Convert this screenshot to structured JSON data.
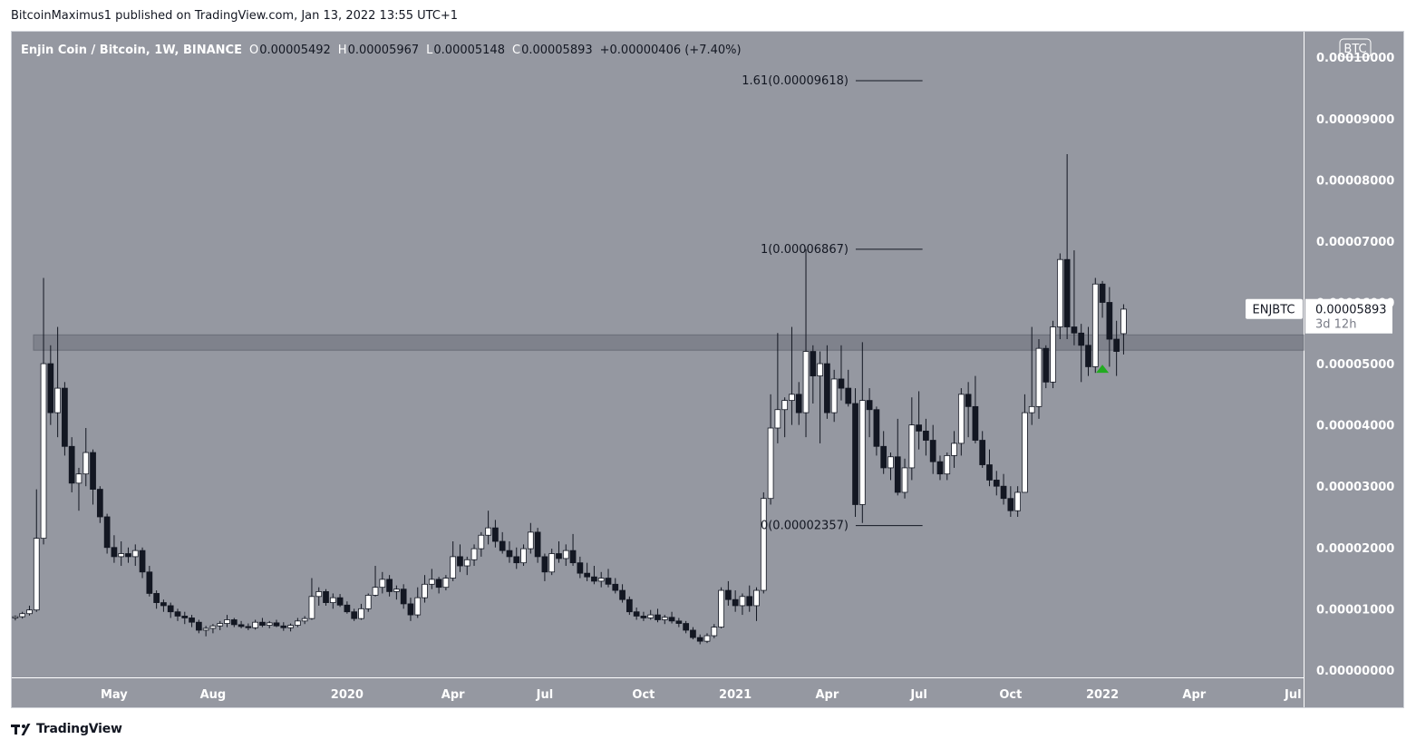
{
  "header": {
    "text": "BitcoinMaximus1 published on TradingView.com, Jan 13, 2022 13:55 UTC+1"
  },
  "footer": {
    "brand": "TradingView"
  },
  "colors": {
    "plot_background": "#9598a1",
    "candle_up": "#ffffff",
    "candle_down": "#131722",
    "axis_text": "#ffffff",
    "support_band": "#787b86",
    "marker": "#22ab20"
  },
  "chart_data": {
    "type": "candlestick",
    "title": "Enjin Coin / Bitcoin, 1W, BINANCE",
    "ohlc_legend": {
      "o_label": "O",
      "o_value": "0.00005492",
      "h_label": "H",
      "h_value": "0.00005967",
      "l_label": "L",
      "l_value": "0.00005148",
      "c_label": "C",
      "c_value": "0.00005893",
      "change": "+0.00000406 (+7.40%)"
    },
    "currency_badge": "BTC",
    "y_ticks": [
      "0.00000000",
      "0.00001000",
      "0.00002000",
      "0.00003000",
      "0.00004000",
      "0.00005000",
      "0.00006000",
      "0.00007000",
      "0.00008000",
      "0.00009000",
      "0.00010000"
    ],
    "y_tick_values": [
      0,
      1e-05,
      2e-05,
      3e-05,
      4e-05,
      5e-05,
      6e-05,
      7e-05,
      8e-05,
      9e-05,
      0.0001
    ],
    "y_range": [
      -1.2e-06,
      0.00010418
    ],
    "x_ticks": [
      {
        "label": "May",
        "week": 14
      },
      {
        "label": "Aug",
        "week": 28
      },
      {
        "label": "2020",
        "week": 47
      },
      {
        "label": "Apr",
        "week": 62
      },
      {
        "label": "Jul",
        "week": 75
      },
      {
        "label": "Oct",
        "week": 89
      },
      {
        "label": "2021",
        "week": 102
      },
      {
        "label": "Apr",
        "week": 115
      },
      {
        "label": "Jul",
        "week": 128
      },
      {
        "label": "Oct",
        "week": 141
      },
      {
        "label": "2022",
        "week": 154
      },
      {
        "label": "Apr",
        "week": 167
      },
      {
        "label": "Jul",
        "week": 181
      }
    ],
    "x_range_weeks": [
      -0.5,
      182.5
    ],
    "bold_x_ticks": [
      "2020",
      "2021",
      "2022"
    ],
    "symbol_label": "ENJBTC",
    "last_price": "0.00005893",
    "countdown": "3d 12h",
    "last_price_value": 5.893e-05,
    "support_zone": [
      5.22e-05,
      5.47e-05
    ],
    "fib_levels": [
      {
        "label": "1.61(0.00009618)",
        "value": 9.618e-05
      },
      {
        "label": "1(0.00006867)",
        "value": 6.867e-05
      },
      {
        "label": "0(0.00002357)",
        "value": 2.357e-05
      }
    ],
    "fib_line_week_range": [
      117,
      128
    ],
    "marker": {
      "shape": "up-triangle",
      "week": 154,
      "value": 4.91e-05
    },
    "candles": [
      [
        8.5e-06,
        8.9e-06,
        8.1e-06,
        8.7e-06
      ],
      [
        8.7e-06,
        9.5e-06,
        8.4e-06,
        9.2e-06
      ],
      [
        9.2e-06,
        1.05e-05,
        8.9e-06,
        9.8e-06
      ],
      [
        9.8e-06,
        2.95e-05,
        9.5e-06,
        2.15e-05
      ],
      [
        2.15e-05,
        6.4e-05,
        2.05e-05,
        5e-05
      ],
      [
        5e-05,
        5.3e-05,
        4e-05,
        4.2e-05
      ],
      [
        4.2e-05,
        5.6e-05,
        3.8e-05,
        4.6e-05
      ],
      [
        4.6e-05,
        4.7e-05,
        3.5e-05,
        3.65e-05
      ],
      [
        3.65e-05,
        3.8e-05,
        2.9e-05,
        3.05e-05
      ],
      [
        3.05e-05,
        3.3e-05,
        2.6e-05,
        3.2e-05
      ],
      [
        3.2e-05,
        3.95e-05,
        3e-05,
        3.55e-05
      ],
      [
        3.55e-05,
        3.6e-05,
        2.7e-05,
        2.95e-05
      ],
      [
        2.95e-05,
        3e-05,
        2.4e-05,
        2.5e-05
      ],
      [
        2.5e-05,
        2.55e-05,
        1.9e-05,
        2e-05
      ],
      [
        2e-05,
        2.2e-05,
        1.75e-05,
        1.85e-05
      ],
      [
        1.85e-05,
        2.1e-05,
        1.7e-05,
        1.9e-05
      ],
      [
        1.9e-05,
        2e-05,
        1.75e-05,
        1.85e-05
      ],
      [
        1.85e-05,
        2.05e-05,
        1.7e-05,
        1.95e-05
      ],
      [
        1.95e-05,
        2e-05,
        1.5e-05,
        1.6e-05
      ],
      [
        1.6e-05,
        1.7e-05,
        1.2e-05,
        1.25e-05
      ],
      [
        1.25e-05,
        1.3e-05,
        1e-05,
        1.1e-05
      ],
      [
        1.1e-05,
        1.15e-05,
        9.5e-06,
        1.05e-05
      ],
      [
        1.05e-05,
        1.1e-05,
        8.5e-06,
        9.5e-06
      ],
      [
        9.5e-06,
        1e-05,
        8e-06,
        8.8e-06
      ],
      [
        8.8e-06,
        9.5e-06,
        7.5e-06,
        8.5e-06
      ],
      [
        8.5e-06,
        9e-06,
        7e-06,
        7.8e-06
      ],
      [
        7.8e-06,
        8.2e-06,
        6e-06,
        6.5e-06
      ],
      [
        6.5e-06,
        7.2e-06,
        5.5e-06,
        6.8e-06
      ],
      [
        6.8e-06,
        7.5e-06,
        6e-06,
        7.2e-06
      ],
      [
        7.2e-06,
        8e-06,
        6.5e-06,
        7.6e-06
      ],
      [
        7.6e-06,
        9e-06,
        7e-06,
        8.2e-06
      ],
      [
        8.2e-06,
        8.5e-06,
        7e-06,
        7.4e-06
      ],
      [
        7.4e-06,
        8e-06,
        6.8e-06,
        7.1e-06
      ],
      [
        7.1e-06,
        7.6e-06,
        6.5e-06,
        6.9e-06
      ],
      [
        6.9e-06,
        8.2e-06,
        6.6e-06,
        7.8e-06
      ],
      [
        7.8e-06,
        8.5e-06,
        7e-06,
        7.3e-06
      ],
      [
        7.3e-06,
        8e-06,
        6.8e-06,
        7.7e-06
      ],
      [
        7.7e-06,
        8.2e-06,
        7e-06,
        7.2e-06
      ],
      [
        7.2e-06,
        7.8e-06,
        6.4e-06,
        6.9e-06
      ],
      [
        6.9e-06,
        7.6e-06,
        6.3e-06,
        7.3e-06
      ],
      [
        7.3e-06,
        8.5e-06,
        7e-06,
        8e-06
      ],
      [
        8e-06,
        8.8e-06,
        7.5e-06,
        8.4e-06
      ],
      [
        8.4e-06,
        1.5e-05,
        8.2e-06,
        1.2e-05
      ],
      [
        1.2e-05,
        1.35e-05,
        1.05e-05,
        1.28e-05
      ],
      [
        1.28e-05,
        1.32e-05,
        1.05e-05,
        1.1e-05
      ],
      [
        1.1e-05,
        1.25e-05,
        1e-05,
        1.18e-05
      ],
      [
        1.18e-05,
        1.24e-05,
        1.03e-05,
        1.06e-05
      ],
      [
        1.06e-05,
        1.12e-05,
        9.2e-06,
        9.5e-06
      ],
      [
        9.5e-06,
        1e-05,
        8e-06,
        8.4e-06
      ],
      [
        8.4e-06,
        1.08e-05,
        8.2e-06,
        1e-05
      ],
      [
        1e-05,
        1.25e-05,
        9.5e-06,
        1.22e-05
      ],
      [
        1.22e-05,
        1.7e-05,
        1.2e-05,
        1.35e-05
      ],
      [
        1.35e-05,
        1.6e-05,
        1.25e-05,
        1.48e-05
      ],
      [
        1.48e-05,
        1.55e-05,
        1.2e-05,
        1.28e-05
      ],
      [
        1.28e-05,
        1.38e-05,
        1.15e-05,
        1.32e-05
      ],
      [
        1.32e-05,
        1.4e-05,
        1e-05,
        1.08e-05
      ],
      [
        1.08e-05,
        1.18e-05,
        8e-06,
        9e-06
      ],
      [
        9e-06,
        1.35e-05,
        8.5e-06,
        1.18e-05
      ],
      [
        1.18e-05,
        1.55e-05,
        1.1e-05,
        1.4e-05
      ],
      [
        1.4e-05,
        1.65e-05,
        1.32e-05,
        1.48e-05
      ],
      [
        1.48e-05,
        1.52e-05,
        1.25e-05,
        1.35e-05
      ],
      [
        1.35e-05,
        1.55e-05,
        1.3e-05,
        1.5e-05
      ],
      [
        1.5e-05,
        2.1e-05,
        1.45e-05,
        1.85e-05
      ],
      [
        1.85e-05,
        2.05e-05,
        1.6e-05,
        1.7e-05
      ],
      [
        1.7e-05,
        1.85e-05,
        1.55e-05,
        1.8e-05
      ],
      [
        1.8e-05,
        2.05e-05,
        1.7e-05,
        1.98e-05
      ],
      [
        1.98e-05,
        2.25e-05,
        1.85e-05,
        2.2e-05
      ],
      [
        2.2e-05,
        2.6e-05,
        2.05e-05,
        2.32e-05
      ],
      [
        2.32e-05,
        2.45e-05,
        2e-05,
        2.1e-05
      ],
      [
        2.1e-05,
        2.25e-05,
        1.9e-05,
        1.95e-05
      ],
      [
        1.95e-05,
        2.1e-05,
        1.75e-05,
        1.85e-05
      ],
      [
        1.85e-05,
        2e-05,
        1.65e-05,
        1.75e-05
      ],
      [
        1.75e-05,
        2.05e-05,
        1.7e-05,
        1.98e-05
      ],
      [
        1.98e-05,
        2.4e-05,
        1.9e-05,
        2.25e-05
      ],
      [
        2.25e-05,
        2.32e-05,
        1.75e-05,
        1.85e-05
      ],
      [
        1.85e-05,
        1.9e-05,
        1.45e-05,
        1.6e-05
      ],
      [
        1.6e-05,
        1.98e-05,
        1.55e-05,
        1.9e-05
      ],
      [
        1.9e-05,
        2.1e-05,
        1.75e-05,
        1.82e-05
      ],
      [
        1.82e-05,
        2.05e-05,
        1.7e-05,
        1.95e-05
      ],
      [
        1.95e-05,
        2.22e-05,
        1.7e-05,
        1.75e-05
      ],
      [
        1.75e-05,
        1.85e-05,
        1.5e-05,
        1.58e-05
      ],
      [
        1.58e-05,
        1.75e-05,
        1.45e-05,
        1.52e-05
      ],
      [
        1.52e-05,
        1.7e-05,
        1.4e-05,
        1.45e-05
      ],
      [
        1.45e-05,
        1.6e-05,
        1.35e-05,
        1.5e-05
      ],
      [
        1.5e-05,
        1.65e-05,
        1.35e-05,
        1.4e-05
      ],
      [
        1.4e-05,
        1.5e-05,
        1.25e-05,
        1.3e-05
      ],
      [
        1.3e-05,
        1.4e-05,
        1.1e-05,
        1.15e-05
      ],
      [
        1.15e-05,
        1.2e-05,
        9e-06,
        9.5e-06
      ],
      [
        9.5e-06,
        1.02e-05,
        8.2e-06,
        8.8e-06
      ],
      [
        8.8e-06,
        9.5e-06,
        8e-06,
        8.5e-06
      ],
      [
        8.5e-06,
        9.8e-06,
        8.2e-06,
        9e-06
      ],
      [
        9e-06,
        1e-05,
        7.8e-06,
        8.2e-06
      ],
      [
        8.2e-06,
        9e-06,
        7.5e-06,
        8.6e-06
      ],
      [
        8.6e-06,
        9.5e-06,
        7.6e-06,
        8e-06
      ],
      [
        8e-06,
        8.5e-06,
        7e-06,
        7.6e-06
      ],
      [
        7.6e-06,
        8e-06,
        6e-06,
        6.5e-06
      ],
      [
        6.5e-06,
        7e-06,
        5e-06,
        5.3e-06
      ],
      [
        5.3e-06,
        5.8e-06,
        4.2e-06,
        4.7e-06
      ],
      [
        4.7e-06,
        6e-06,
        4.4e-06,
        5.6e-06
      ],
      [
        5.6e-06,
        7.5e-06,
        5.2e-06,
        7e-06
      ],
      [
        7e-06,
        1.35e-05,
        6.8e-06,
        1.3e-05
      ],
      [
        1.3e-05,
        1.45e-05,
        1.05e-05,
        1.15e-05
      ],
      [
        1.15e-05,
        1.3e-05,
        9.5e-06,
        1.05e-05
      ],
      [
        1.05e-05,
        1.25e-05,
        9e-06,
        1.2e-05
      ],
      [
        1.2e-05,
        1.38e-05,
        9.5e-06,
        1.05e-05
      ],
      [
        1.05e-05,
        1.35e-05,
        8e-06,
        1.3e-05
      ],
      [
        1.3e-05,
        2.9e-05,
        1.25e-05,
        2.8e-05
      ],
      [
        2.8e-05,
        4.5e-05,
        2.7e-05,
        3.95e-05
      ],
      [
        3.95e-05,
        5.5e-05,
        3.7e-05,
        4.25e-05
      ],
      [
        4.25e-05,
        4.45e-05,
        3.8e-05,
        4.4e-05
      ],
      [
        4.4e-05,
        5.6e-05,
        4e-05,
        4.5e-05
      ],
      [
        4.5e-05,
        4.7e-05,
        4e-05,
        4.2e-05
      ],
      [
        4.2e-05,
        6.87e-05,
        3.8e-05,
        5.2e-05
      ],
      [
        5.2e-05,
        5.3e-05,
        4.35e-05,
        4.8e-05
      ],
      [
        4.8e-05,
        5.2e-05,
        3.7e-05,
        5e-05
      ],
      [
        5e-05,
        5.3e-05,
        4.1e-05,
        4.2e-05
      ],
      [
        4.2e-05,
        4.9e-05,
        4.05e-05,
        4.75e-05
      ],
      [
        4.75e-05,
        5.3e-05,
        4.4e-05,
        4.6e-05
      ],
      [
        4.6e-05,
        4.9e-05,
        4.3e-05,
        4.35e-05
      ],
      [
        4.35e-05,
        4.6e-05,
        2.5e-05,
        2.7e-05
      ],
      [
        2.7e-05,
        5.35e-05,
        2.4e-05,
        4.4e-05
      ],
      [
        4.4e-05,
        4.6e-05,
        3.8e-05,
        4.25e-05
      ],
      [
        4.25e-05,
        4.3e-05,
        3.5e-05,
        3.65e-05
      ],
      [
        3.65e-05,
        3.9e-05,
        3.2e-05,
        3.3e-05
      ],
      [
        3.3e-05,
        3.55e-05,
        3.1e-05,
        3.48e-05
      ],
      [
        3.48e-05,
        4.1e-05,
        2.85e-05,
        2.9e-05
      ],
      [
        2.9e-05,
        3.45e-05,
        2.8e-05,
        3.3e-05
      ],
      [
        3.3e-05,
        4.45e-05,
        3.1e-05,
        4e-05
      ],
      [
        4e-05,
        4.55e-05,
        3.6e-05,
        3.9e-05
      ],
      [
        3.9e-05,
        4.1e-05,
        3.5e-05,
        3.75e-05
      ],
      [
        3.75e-05,
        4e-05,
        3.2e-05,
        3.4e-05
      ],
      [
        3.4e-05,
        3.5e-05,
        3.1e-05,
        3.2e-05
      ],
      [
        3.2e-05,
        3.55e-05,
        3.1e-05,
        3.5e-05
      ],
      [
        3.5e-05,
        3.9e-05,
        3.3e-05,
        3.7e-05
      ],
      [
        3.7e-05,
        4.6e-05,
        3.5e-05,
        4.5e-05
      ],
      [
        4.5e-05,
        4.7e-05,
        3.8e-05,
        4.3e-05
      ],
      [
        4.3e-05,
        4.8e-05,
        3.7e-05,
        3.75e-05
      ],
      [
        3.75e-05,
        3.9e-05,
        3.3e-05,
        3.35e-05
      ],
      [
        3.35e-05,
        3.6e-05,
        3e-05,
        3.1e-05
      ],
      [
        3.1e-05,
        3.25e-05,
        2.85e-05,
        3e-05
      ],
      [
        3e-05,
        3.2e-05,
        2.7e-05,
        2.8e-05
      ],
      [
        2.8e-05,
        3e-05,
        2.5e-05,
        2.6e-05
      ],
      [
        2.6e-05,
        3e-05,
        2.5e-05,
        2.9e-05
      ],
      [
        2.9e-05,
        4.5e-05,
        2.9e-05,
        4.2e-05
      ],
      [
        4.2e-05,
        5.6e-05,
        4e-05,
        4.3e-05
      ],
      [
        4.3e-05,
        5.4e-05,
        4.1e-05,
        5.25e-05
      ],
      [
        5.25e-05,
        5.3e-05,
        4.6e-05,
        4.7e-05
      ],
      [
        4.7e-05,
        5.7e-05,
        4.6e-05,
        5.6e-05
      ],
      [
        5.6e-05,
        6.8e-05,
        5.4e-05,
        6.7e-05
      ],
      [
        6.7e-05,
        8.42e-05,
        5.4e-05,
        5.6e-05
      ],
      [
        5.6e-05,
        6.85e-05,
        5.3e-05,
        5.5e-05
      ],
      [
        5.5e-05,
        5.65e-05,
        4.7e-05,
        5.3e-05
      ],
      [
        5.3e-05,
        5.6e-05,
        4.8e-05,
        4.95e-05
      ],
      [
        4.95e-05,
        6.4e-05,
        4.85e-05,
        6.3e-05
      ],
      [
        6.3e-05,
        6.35e-05,
        5.75e-05,
        6e-05
      ],
      [
        6e-05,
        6.25e-05,
        4.95e-05,
        5.4e-05
      ],
      [
        5.4e-05,
        5.7e-05,
        4.8e-05,
        5.2e-05
      ],
      [
        5.49e-05,
        5.97e-05,
        5.15e-05,
        5.89e-05
      ]
    ]
  }
}
